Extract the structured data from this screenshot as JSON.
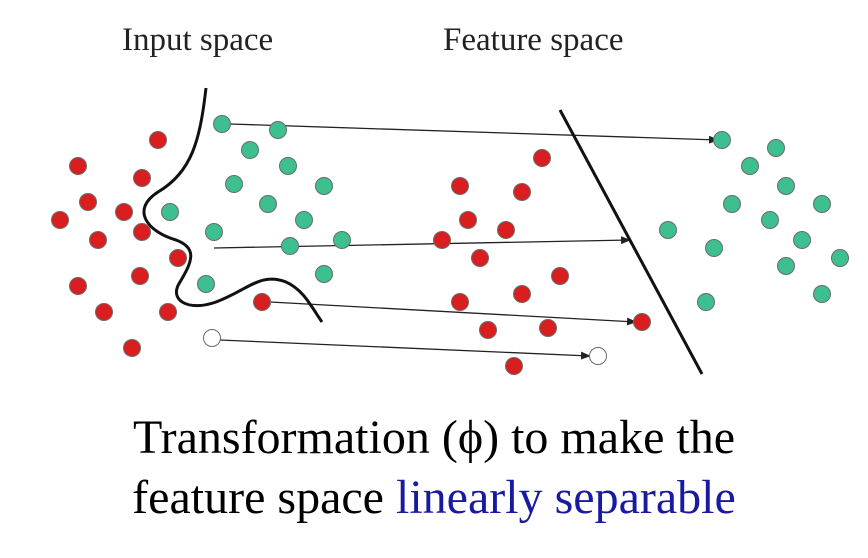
{
  "labels": {
    "input_space": "Input space",
    "feature_space": "Feature space"
  },
  "caption": {
    "line1": "Transformation (ϕ) to make the",
    "line2_prefix": "feature space ",
    "line2_highlight": "linearly separable"
  },
  "colors": {
    "class_red": "#d81e1e",
    "class_green": "#3dbf8f",
    "point_outline": "#6b6b6b",
    "hollow_point": "#ffffff",
    "curve_and_line": "#111111",
    "arrow": "#222222",
    "caption_highlight": "#1a1aa0"
  }
}
